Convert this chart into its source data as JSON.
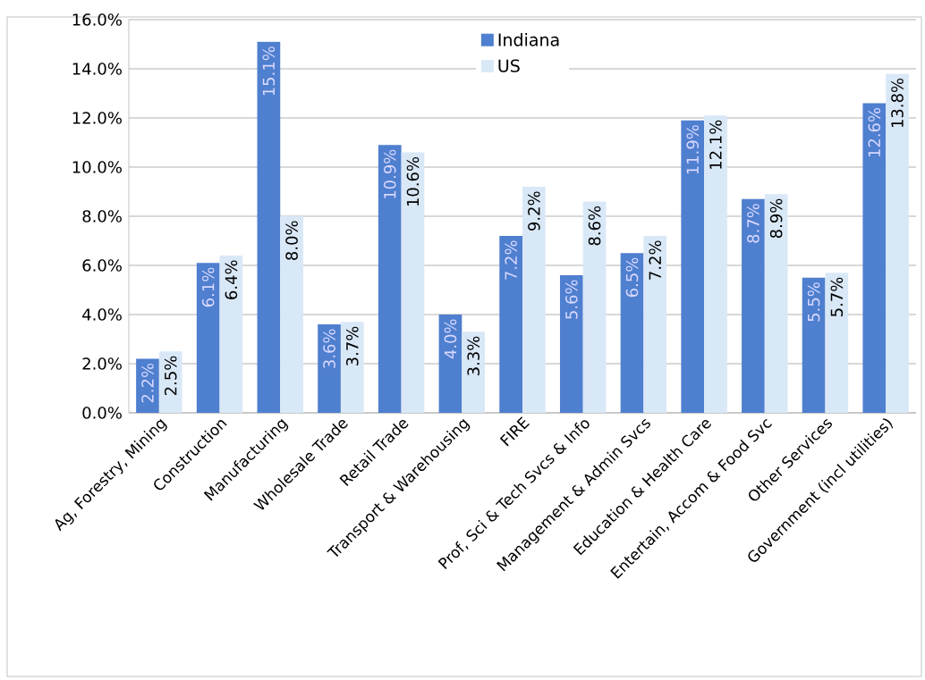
{
  "chart_data": {
    "type": "bar",
    "categories": [
      "Ag, Forestry, Mining",
      "Construction",
      "Manufacturing",
      "Wholesale Trade",
      "Retail Trade",
      "Transport & Warehousing",
      "FIRE",
      "Prof, Sci & Tech Svcs & Info",
      "Management & Admin Svcs",
      "Education & Health Care",
      "Entertain, Accom & Food Svc",
      "Other Services",
      "Government (incl utilities)"
    ],
    "series": [
      {
        "name": "Indiana",
        "color": "#4f7fcf",
        "values": [
          2.2,
          6.1,
          15.1,
          3.6,
          10.9,
          4.0,
          7.2,
          5.6,
          6.5,
          11.9,
          8.7,
          5.5,
          12.6
        ],
        "value_labels": [
          "2.2%",
          "6.1%",
          "15.1%",
          "3.6%",
          "10.9%",
          "4.0%",
          "7.2%",
          "5.6%",
          "6.5%",
          "11.9%",
          "8.7%",
          "5.5%",
          "12.6%"
        ]
      },
      {
        "name": "US",
        "color": "#d9e8f7",
        "values": [
          2.5,
          6.4,
          8.0,
          3.7,
          10.6,
          3.3,
          9.2,
          8.6,
          7.2,
          12.1,
          8.9,
          5.7,
          13.8
        ],
        "value_labels": [
          "2.5%",
          "6.4%",
          "8.0%",
          "3.7%",
          "10.6%",
          "3.3%",
          "9.2%",
          "8.6%",
          "7.2%",
          "12.1%",
          "8.9%",
          "5.7%",
          "13.8%"
        ]
      }
    ],
    "ylim": [
      0,
      16
    ],
    "yticks": [
      {
        "value": 0,
        "label": "0.0%"
      },
      {
        "value": 2,
        "label": "2.0%"
      },
      {
        "value": 4,
        "label": "4.0%"
      },
      {
        "value": 6,
        "label": "6.0%"
      },
      {
        "value": 8,
        "label": "8.0%"
      },
      {
        "value": 10,
        "label": "10.0%"
      },
      {
        "value": 12,
        "label": "12.0%"
      },
      {
        "value": 14,
        "label": "14.0%"
      },
      {
        "value": 16,
        "label": "16.0%"
      }
    ],
    "grid": "y",
    "legend": "top"
  }
}
